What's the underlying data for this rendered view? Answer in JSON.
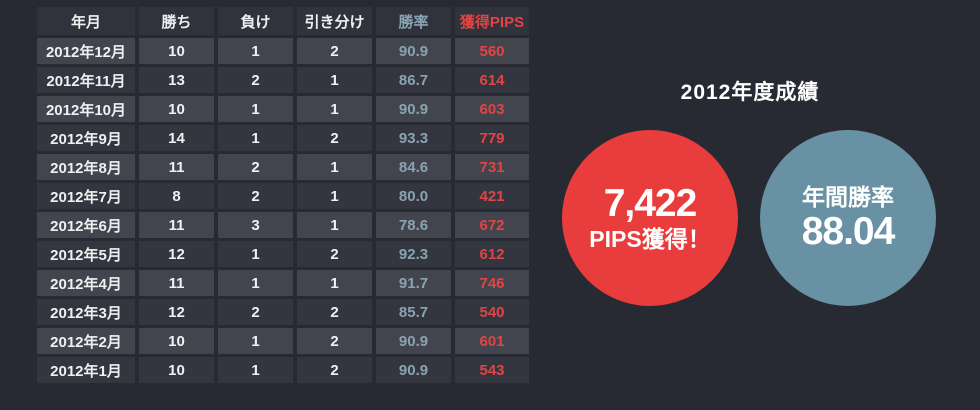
{
  "chart_data": {
    "type": "table",
    "title": "2012年度成績",
    "columns": [
      {
        "label": "年月",
        "key": "month",
        "accent": "none"
      },
      {
        "label": "勝ち",
        "key": "wins",
        "accent": "none"
      },
      {
        "label": "負け",
        "key": "losses",
        "accent": "none"
      },
      {
        "label": "引き分け",
        "key": "draws",
        "accent": "none"
      },
      {
        "label": "勝率",
        "key": "win-rate",
        "accent": "rate"
      },
      {
        "label": "獲得PIPS",
        "key": "pips",
        "accent": "pips"
      }
    ],
    "rows": [
      [
        "2012年12月",
        "10",
        "1",
        "2",
        "90.9",
        "560"
      ],
      [
        "2012年11月",
        "13",
        "2",
        "1",
        "86.7",
        "614"
      ],
      [
        "2012年10月",
        "10",
        "1",
        "1",
        "90.9",
        "603"
      ],
      [
        "2012年9月",
        "14",
        "1",
        "2",
        "93.3",
        "779"
      ],
      [
        "2012年8月",
        "11",
        "2",
        "1",
        "84.6",
        "731"
      ],
      [
        "2012年7月",
        "8",
        "2",
        "1",
        "80.0",
        "421"
      ],
      [
        "2012年6月",
        "11",
        "3",
        "1",
        "78.6",
        "672"
      ],
      [
        "2012年5月",
        "12",
        "1",
        "2",
        "92.3",
        "612"
      ],
      [
        "2012年4月",
        "11",
        "1",
        "1",
        "91.7",
        "746"
      ],
      [
        "2012年3月",
        "12",
        "2",
        "2",
        "85.7",
        "540"
      ],
      [
        "2012年2月",
        "10",
        "1",
        "2",
        "90.9",
        "601"
      ],
      [
        "2012年1月",
        "10",
        "1",
        "2",
        "90.9",
        "543"
      ]
    ],
    "summary_badges": [
      {
        "name": "total-pips",
        "line1": "7,422",
        "line2": "PIPS獲得！",
        "big_line": 1
      },
      {
        "name": "annual-win-rate",
        "line1": "年間勝率",
        "line2": "88.04",
        "big_line": 2
      }
    ]
  },
  "colors": {
    "bg": "#282a33",
    "header-bg": "#30333c",
    "row-light": "#43454e",
    "row-dark": "#34363f",
    "text": "#eef0f2",
    "rate": "#8aa3b2",
    "pips": "#e24444",
    "circle-red": "#e83d3c",
    "circle-blue": "#6892a3"
  }
}
